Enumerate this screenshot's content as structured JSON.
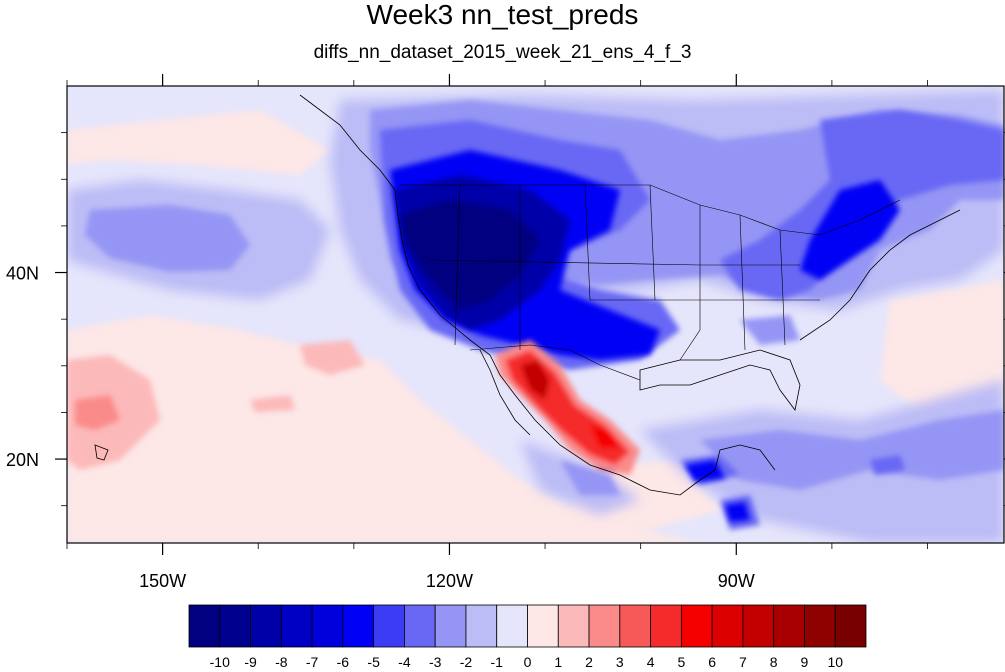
{
  "title": "Week3 nn_test_preds",
  "subtitle": "diffs_nn_dataset_2015_week_21_ens_4_f_3",
  "map": {
    "lon_range": [
      -160,
      -62
    ],
    "lat_range": [
      11,
      60
    ],
    "x_ticks": [
      {
        "value": -150,
        "label": "150W"
      },
      {
        "value": -120,
        "label": "120W"
      },
      {
        "value": -90,
        "label": "90W"
      }
    ],
    "y_ticks": [
      {
        "value": 40,
        "label": "40N"
      },
      {
        "value": 20,
        "label": "20N"
      }
    ]
  },
  "colorbar": {
    "labels": [
      "-10",
      "-9",
      "-8",
      "-7",
      "-6",
      "-5",
      "-4",
      "-3",
      "-2",
      "-1",
      "0",
      "1",
      "2",
      "3",
      "4",
      "5",
      "6",
      "7",
      "8",
      "9",
      "10"
    ],
    "colors": [
      "#000080",
      "#00008f",
      "#0000a8",
      "#0000c4",
      "#0000dd",
      "#0000f5",
      "#3c3cf5",
      "#6868f5",
      "#9595f5",
      "#bcbcf6",
      "#e5e5fb",
      "#fde7e7",
      "#fcb9b9",
      "#fb8a8a",
      "#f75858",
      "#f52a2a",
      "#f50000",
      "#dc0000",
      "#c30000",
      "#a80000",
      "#8f0000",
      "#780000"
    ]
  }
}
